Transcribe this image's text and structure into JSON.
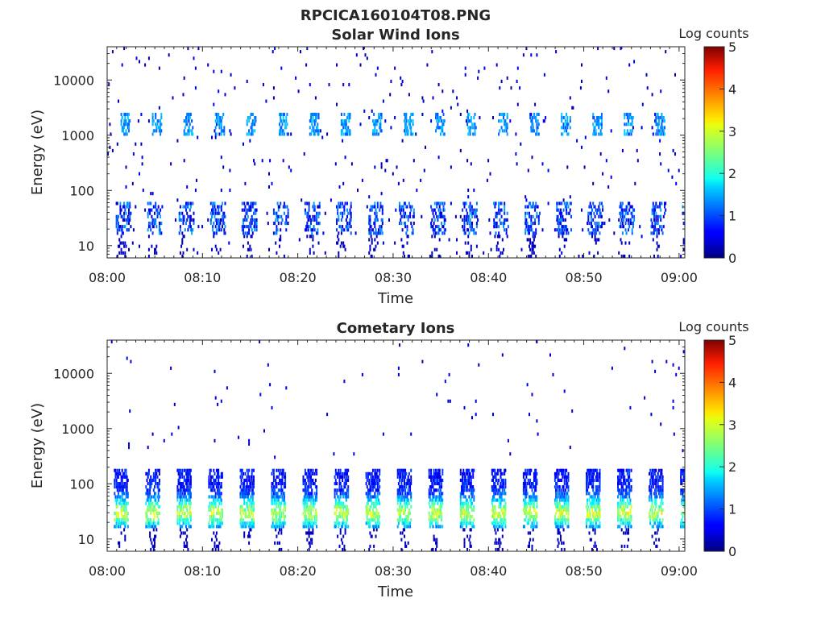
{
  "figure": {
    "title": "RPCICA160104T08.PNG"
  },
  "chart_data": [
    {
      "type": "heatmap",
      "title": "Solar Wind Ions",
      "xlabel": "Time",
      "ylabel": "Energy (eV)",
      "xticks": [
        "08:00",
        "08:10",
        "08:20",
        "08:30",
        "08:40",
        "08:50",
        "09:00"
      ],
      "xlim_minutes": [
        0,
        60.6
      ],
      "yscale": "log",
      "yticks": [
        "10",
        "100",
        "1000",
        "10000"
      ],
      "ylim": [
        6,
        40000
      ],
      "colorbar": {
        "label": "Log counts",
        "min": 0,
        "max": 5,
        "ticks": [
          "0",
          "1",
          "2",
          "3",
          "4",
          "5"
        ],
        "colormap": "jet"
      },
      "description_of_features": {
        "high_energy_band_eV": [
          1000,
          2500
        ],
        "high_energy_band_log_counts": [
          1,
          1.7
        ],
        "low_energy_band_eV": [
          15,
          60
        ],
        "low_energy_band_log_counts": [
          0.3,
          1.5
        ],
        "sweep_period_minutes": 3.3
      }
    },
    {
      "type": "heatmap",
      "title": "Cometary Ions",
      "xlabel": "Time",
      "ylabel": "Energy (eV)",
      "xticks": [
        "08:00",
        "08:10",
        "08:20",
        "08:30",
        "08:40",
        "08:50",
        "09:00"
      ],
      "xlim_minutes": [
        0,
        60.6
      ],
      "yscale": "log",
      "yticks": [
        "10",
        "100",
        "1000",
        "10000"
      ],
      "ylim": [
        6,
        40000
      ],
      "colorbar": {
        "label": "Log counts",
        "min": 0,
        "max": 5,
        "ticks": [
          "0",
          "1",
          "2",
          "3",
          "4",
          "5"
        ],
        "colormap": "jet"
      },
      "description_of_features": {
        "burst_period_minutes": 3.3,
        "burst_energy_range_eV": [
          15,
          200
        ],
        "peak_energy_eV": 30,
        "peak_log_counts": 2.8
      }
    }
  ]
}
